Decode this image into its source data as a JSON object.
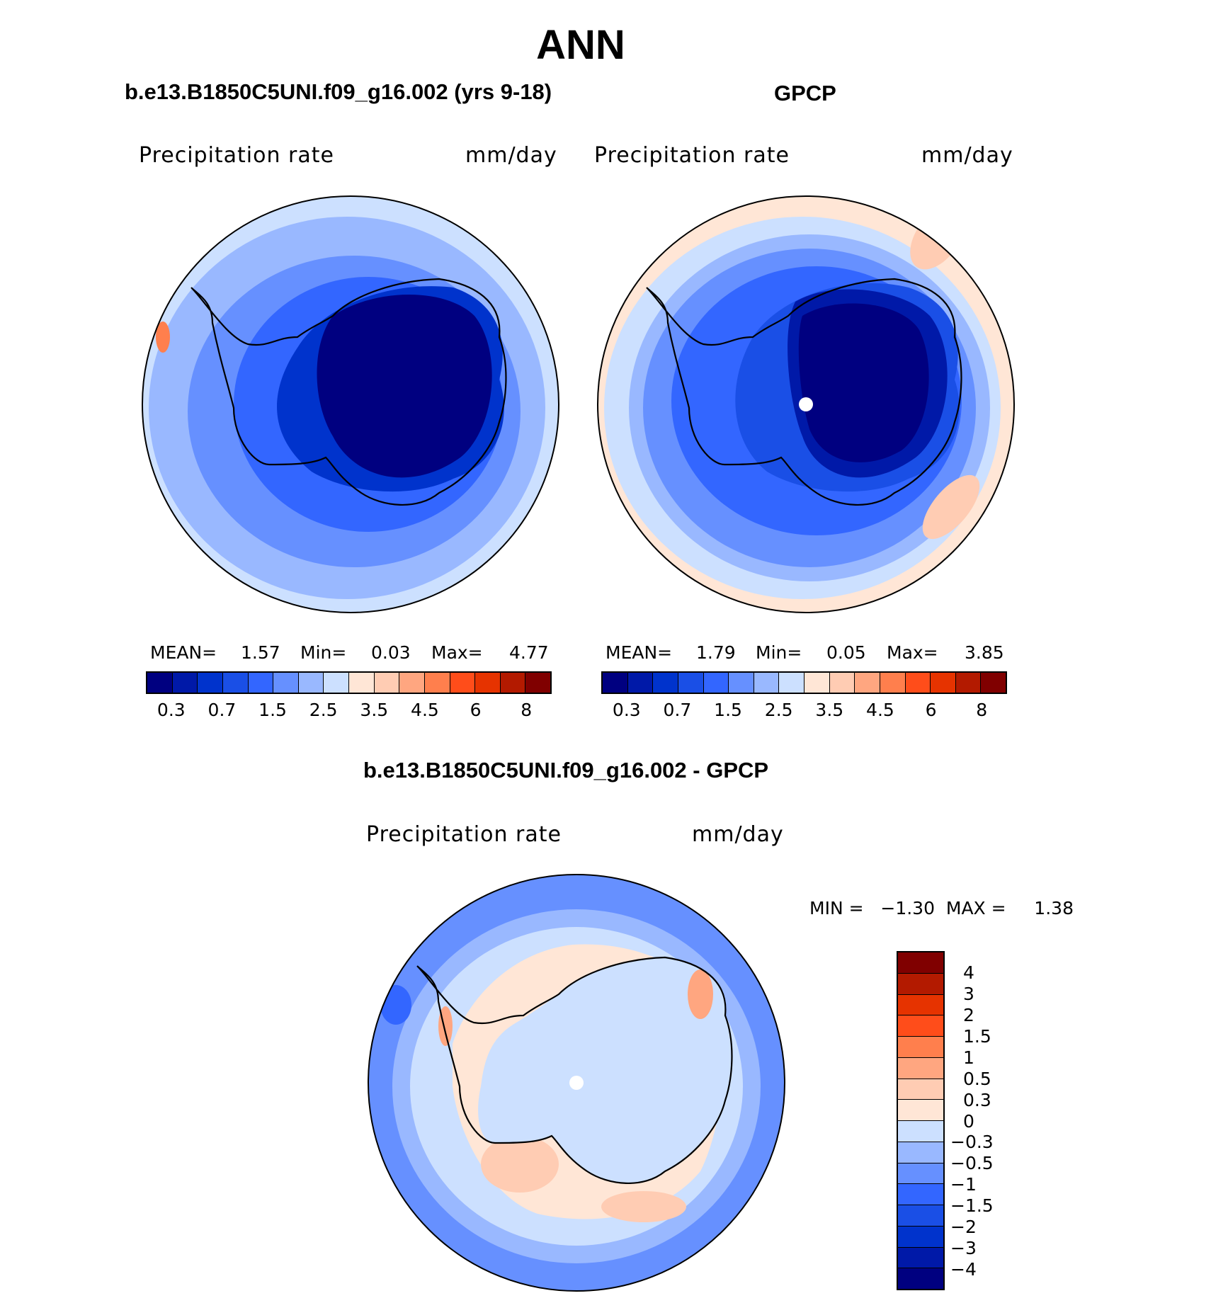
{
  "title": "ANN",
  "panels": {
    "model": {
      "subtitle": "b.e13.B1850C5UNI.f09_g16.002 (yrs 9-18)",
      "var_label": "Precipitation  rate",
      "units": "mm/day",
      "mean_label": "MEAN=",
      "mean_value": "1.57",
      "min_label": "Min=",
      "min_value": "0.03",
      "max_label": "Max=",
      "max_value": "4.77"
    },
    "obs": {
      "subtitle": "GPCP",
      "var_label": "Precipitation  rate",
      "units": "mm/day",
      "mean_label": "MEAN=",
      "mean_value": "1.79",
      "min_label": "Min=",
      "min_value": "0.05",
      "max_label": "Max=",
      "max_value": "3.85"
    },
    "diff": {
      "subtitle": "b.e13.B1850C5UNI.f09_g16.002 - GPCP",
      "var_label": "Precipitation  rate",
      "units": "mm/day",
      "minmax": "MIN =   −1.30  MAX =     1.38"
    }
  },
  "colorbar_main": {
    "colors": [
      "#000080",
      "#0019a8",
      "#0033cc",
      "#1a4fe6",
      "#3366ff",
      "#6690ff",
      "#99b8ff",
      "#cce0ff",
      "#ffe6d6",
      "#ffccb3",
      "#ffa680",
      "#ff7f4d",
      "#ff4d1a",
      "#e63300",
      "#b31a00",
      "#800000"
    ],
    "ticks": [
      "0.3",
      "0.7",
      "1.5",
      "2.5",
      "3.5",
      "4.5",
      "6",
      "8"
    ]
  },
  "colorbar_diff": {
    "colors": [
      "#800000",
      "#b31a00",
      "#e63300",
      "#ff4d1a",
      "#ff7f4d",
      "#ffa680",
      "#ffccb3",
      "#ffe6d6",
      "#cce0ff",
      "#99b8ff",
      "#6690ff",
      "#3366ff",
      "#1a4fe6",
      "#0033cc",
      "#0019a8",
      "#000080"
    ],
    "ticks": [
      "4",
      "3",
      "2",
      "1.5",
      "1",
      "0.5",
      "0.3",
      "0",
      "−0.3",
      "−0.5",
      "−1",
      "−1.5",
      "−2",
      "−3",
      "−4"
    ]
  }
}
